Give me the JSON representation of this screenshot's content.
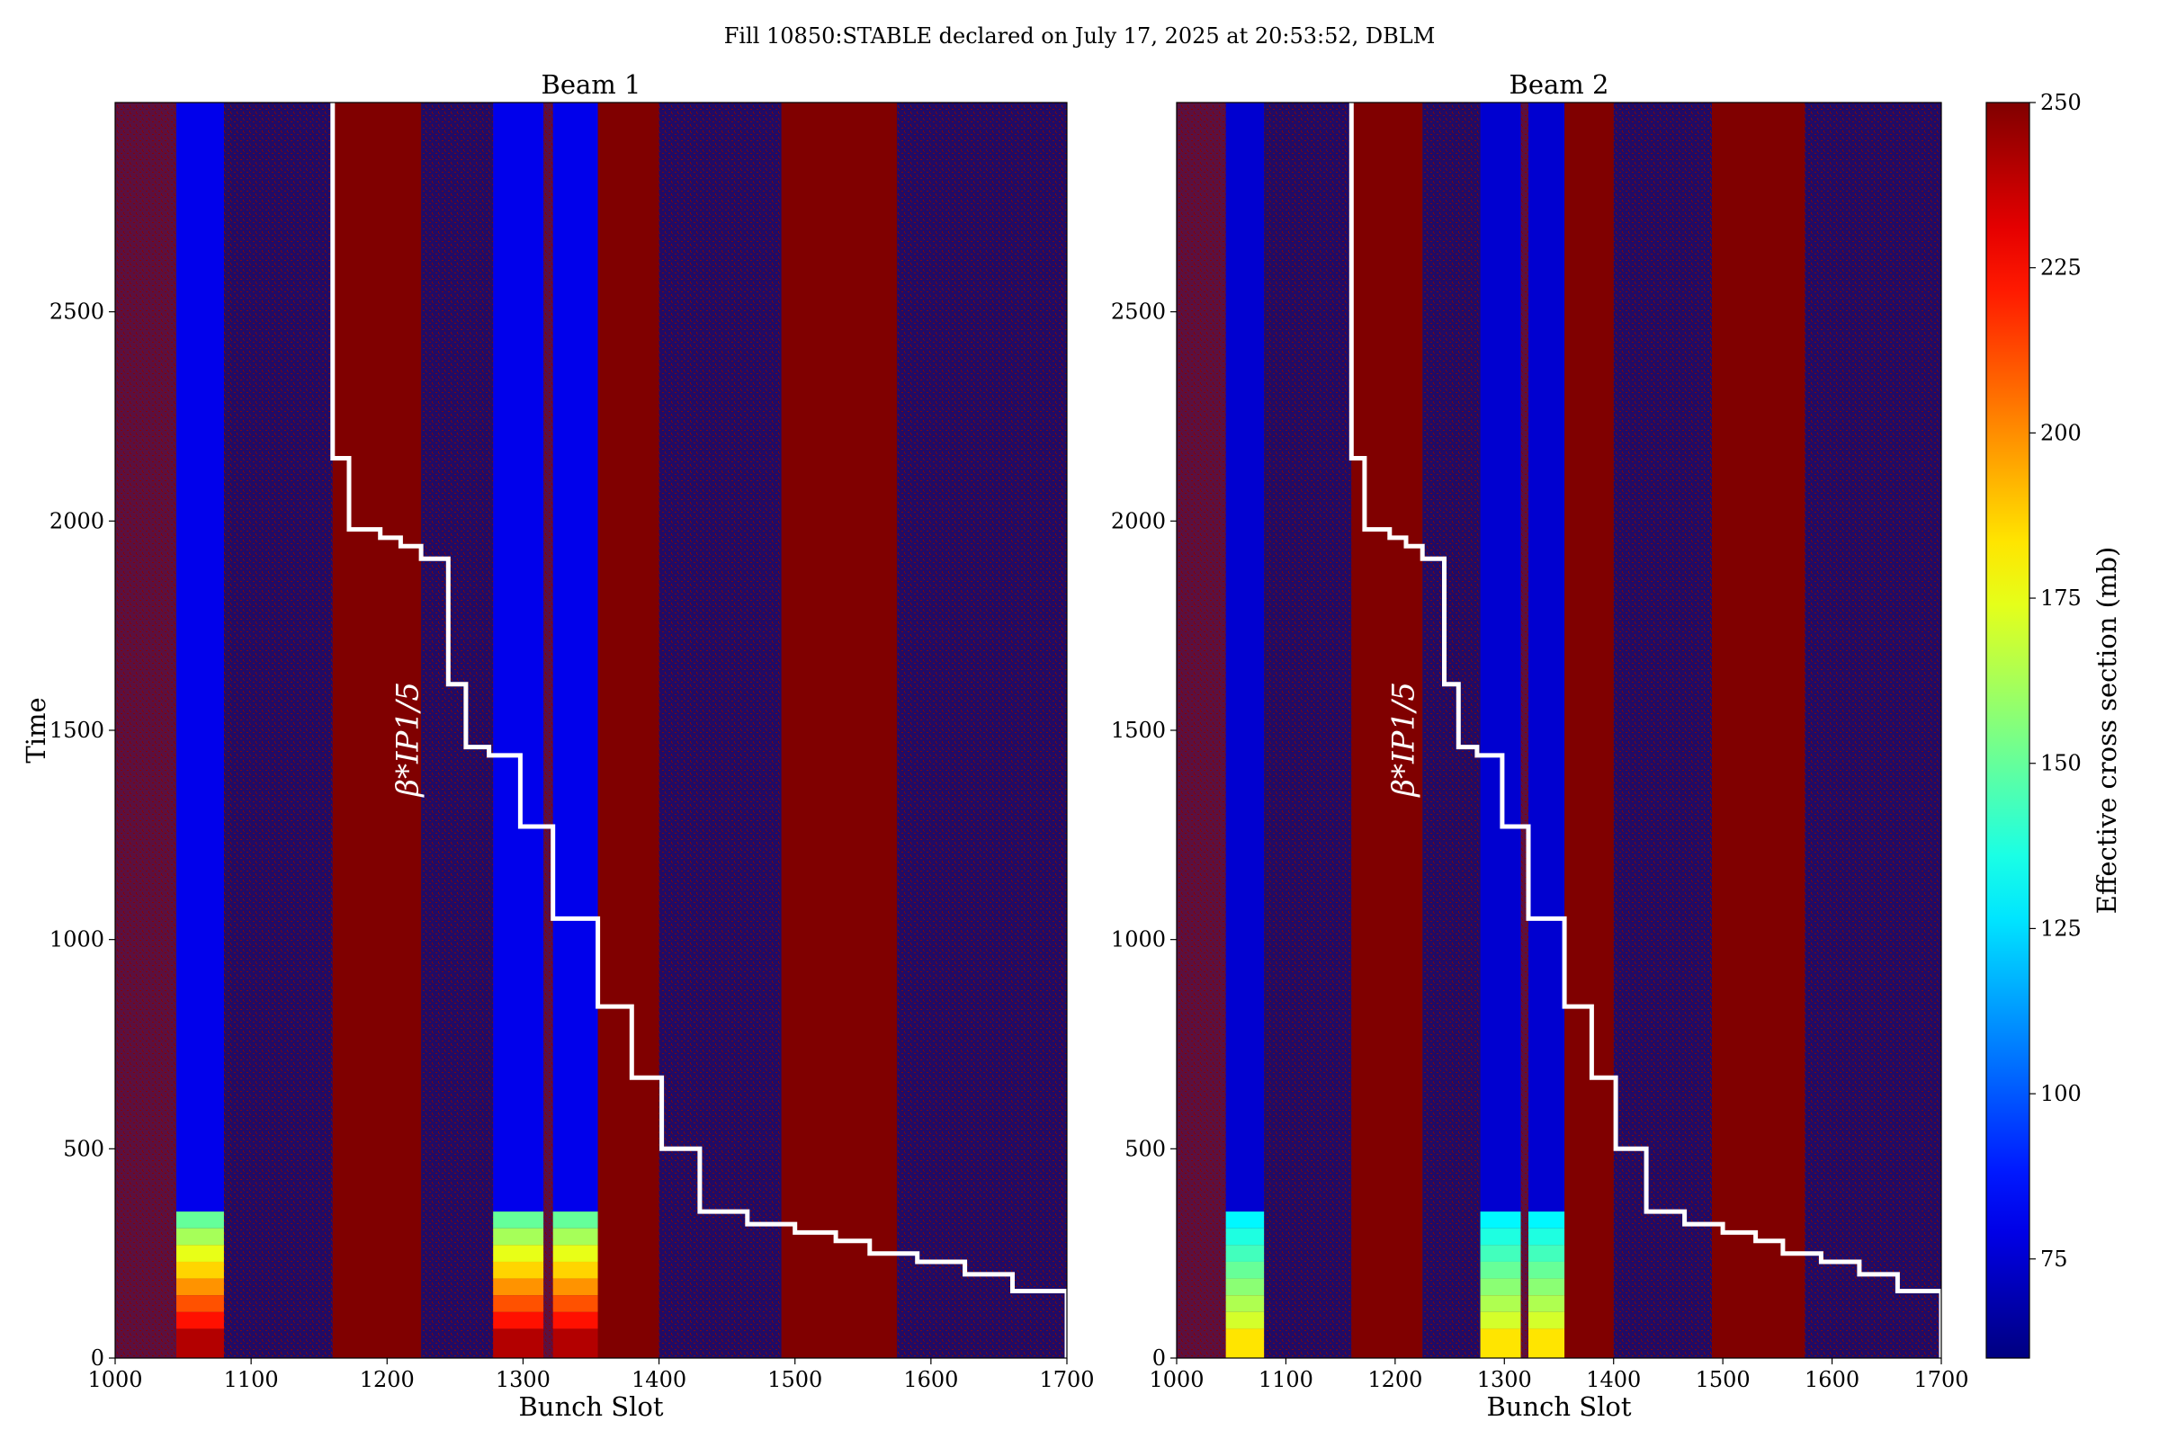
{
  "suptitle": "Fill 10850:STABLE declared on July 17, 2025 at 20:53:52, DBLM",
  "colors": {
    "background_red": "#800000",
    "background_blue": "#00008f",
    "bunch_blue": "#0a2aff",
    "beta_line": "#ffffff"
  },
  "colorbar": {
    "label": "Effective cross section (mb)",
    "min": 60,
    "max": 250,
    "ticks": [
      75,
      100,
      125,
      150,
      175,
      200,
      225,
      250
    ],
    "colormap": "jet"
  },
  "chart_data": [
    {
      "type": "heatmap",
      "title": "Beam 1",
      "xlabel": "Bunch Slot",
      "ylabel": "Time",
      "xlim": [
        1000,
        1700
      ],
      "ylim": [
        0,
        3000
      ],
      "xticks": [
        1000,
        1100,
        1200,
        1300,
        1400,
        1500,
        1600,
        1700
      ],
      "yticks": [
        0,
        500,
        1000,
        1500,
        2000,
        2500
      ],
      "annotation": "β*IP1/5",
      "bunch_trains": [
        {
          "slots": [
            1045,
            1080
          ],
          "value_after_t350": 80,
          "value_during_ramp": 150
        },
        {
          "slots": [
            1278,
            1315
          ],
          "value_after_t350": 80,
          "value_during_ramp": 150
        },
        {
          "slots": [
            1322,
            1355
          ],
          "value_after_t350": 80,
          "value_during_ramp": 150
        }
      ],
      "empty_high_bands": [
        [
          1160,
          1225
        ],
        [
          1355,
          1400
        ],
        [
          1490,
          1575
        ]
      ],
      "beta_star_steps": {
        "x": [
          1160,
          1160,
          1172,
          1172,
          1195,
          1195,
          1210,
          1210,
          1225,
          1225,
          1245,
          1245,
          1258,
          1258,
          1275,
          1275,
          1298,
          1298,
          1322,
          1322,
          1355,
          1355,
          1380,
          1380,
          1402,
          1402,
          1430,
          1430,
          1465,
          1465,
          1500,
          1500,
          1530,
          1530,
          1555,
          1555,
          1590,
          1590,
          1625,
          1625,
          1660,
          1660,
          1700,
          1700
        ],
        "y": [
          3000,
          2150,
          2150,
          1980,
          1980,
          1960,
          1960,
          1940,
          1940,
          1910,
          1910,
          1610,
          1610,
          1460,
          1460,
          1440,
          1440,
          1270,
          1270,
          1050,
          1050,
          840,
          840,
          670,
          670,
          500,
          500,
          350,
          350,
          320,
          320,
          300,
          300,
          280,
          280,
          250,
          250,
          230,
          230,
          200,
          200,
          160,
          160,
          0
        ]
      }
    },
    {
      "type": "heatmap",
      "title": "Beam 2",
      "xlabel": "Bunch Slot",
      "ylabel": "",
      "xlim": [
        1000,
        1700
      ],
      "ylim": [
        0,
        3000
      ],
      "xticks": [
        1000,
        1100,
        1200,
        1300,
        1400,
        1500,
        1600,
        1700
      ],
      "yticks": [
        0,
        500,
        1000,
        1500,
        2000,
        2500
      ],
      "annotation": "β*IP1/5",
      "bunch_trains": [
        {
          "slots": [
            1045,
            1080
          ],
          "value_after_t350": 75,
          "value_during_ramp": 130
        },
        {
          "slots": [
            1278,
            1315
          ],
          "value_after_t350": 75,
          "value_during_ramp": 130
        },
        {
          "slots": [
            1322,
            1355
          ],
          "value_after_t350": 75,
          "value_during_ramp": 130
        }
      ],
      "empty_high_bands": [
        [
          1160,
          1225
        ],
        [
          1355,
          1400
        ],
        [
          1490,
          1575
        ]
      ],
      "beta_star_steps": {
        "x": [
          1160,
          1160,
          1172,
          1172,
          1195,
          1195,
          1210,
          1210,
          1225,
          1225,
          1245,
          1245,
          1258,
          1258,
          1275,
          1275,
          1298,
          1298,
          1322,
          1322,
          1355,
          1355,
          1380,
          1380,
          1402,
          1402,
          1430,
          1430,
          1465,
          1465,
          1500,
          1500,
          1530,
          1530,
          1555,
          1555,
          1590,
          1590,
          1625,
          1625,
          1660,
          1660,
          1700,
          1700
        ],
        "y": [
          3000,
          2150,
          2150,
          1980,
          1980,
          1960,
          1960,
          1940,
          1940,
          1910,
          1910,
          1610,
          1610,
          1460,
          1460,
          1440,
          1440,
          1270,
          1270,
          1050,
          1050,
          840,
          840,
          670,
          670,
          500,
          500,
          350,
          350,
          320,
          320,
          300,
          300,
          280,
          280,
          250,
          250,
          230,
          230,
          200,
          200,
          160,
          160,
          0
        ]
      }
    }
  ]
}
